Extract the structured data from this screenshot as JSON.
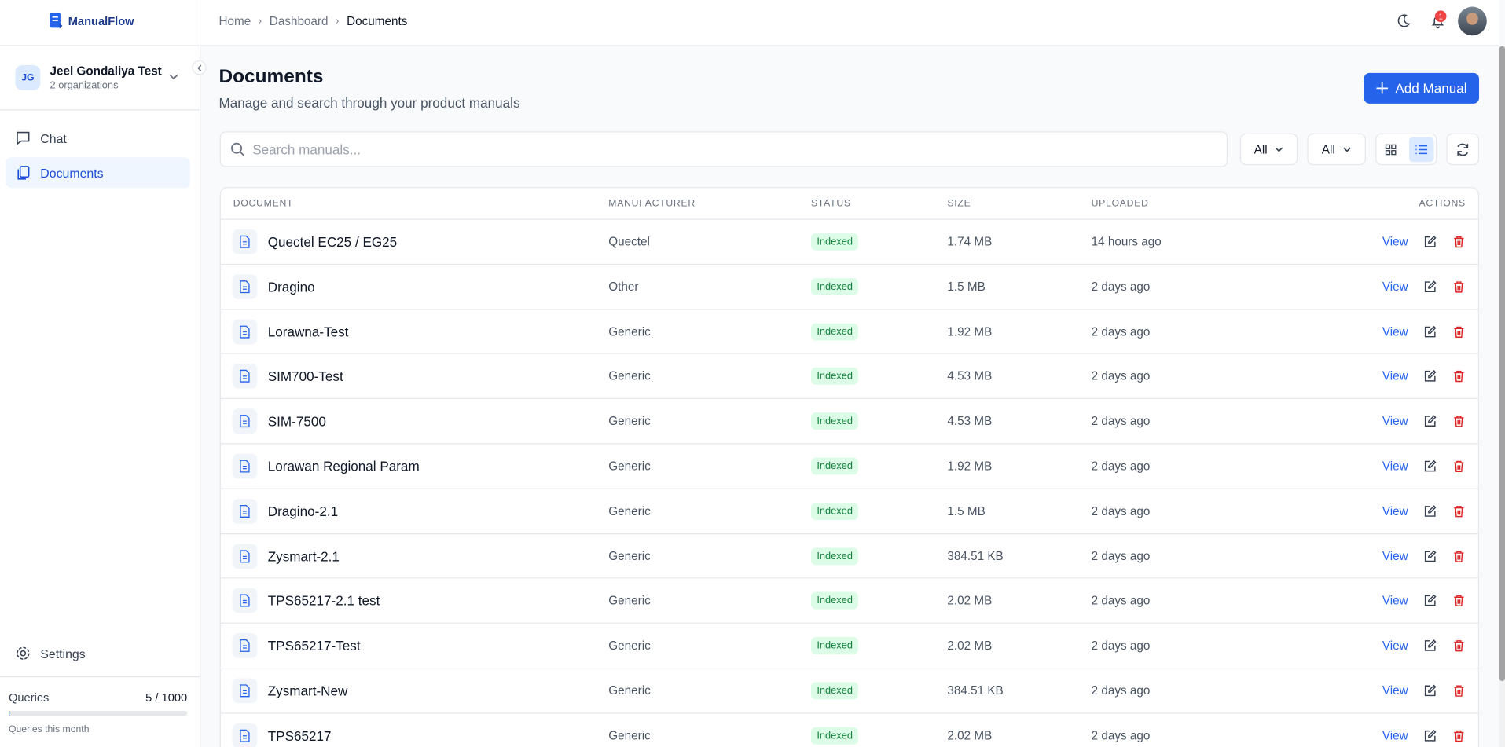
{
  "brand": "ManualFlow",
  "breadcrumb": [
    "Home",
    "Dashboard",
    "Documents"
  ],
  "notifications": "1",
  "user": {
    "initials": "JG",
    "name": "Jeel Gondaliya Test",
    "orgs": "2 organizations"
  },
  "nav": [
    "Chat",
    "Documents"
  ],
  "settings": "Settings",
  "usage": {
    "label": "Queries",
    "value": "5 / 1000",
    "note": "Queries this month"
  },
  "page": {
    "title": "Documents",
    "subtitle": "Manage and search through your product manuals",
    "add_button": "Add Manual",
    "search_placeholder": "Search manuals...",
    "filters": [
      "All",
      "All"
    ]
  },
  "table": {
    "columns": [
      "DOCUMENT",
      "MANUFACTURER",
      "STATUS",
      "SIZE",
      "UPLOADED",
      "ACTIONS"
    ],
    "action": "View",
    "rows": [
      [
        "Quectel EC25 / EG25",
        "Quectel",
        "Indexed",
        "1.74 MB",
        "14 hours ago"
      ],
      [
        "Dragino",
        "Other",
        "Indexed",
        "1.5 MB",
        "2 days ago"
      ],
      [
        "Lorawna-Test",
        "Generic",
        "Indexed",
        "1.92 MB",
        "2 days ago"
      ],
      [
        "SIM700-Test",
        "Generic",
        "Indexed",
        "4.53 MB",
        "2 days ago"
      ],
      [
        "SIM-7500",
        "Generic",
        "Indexed",
        "4.53 MB",
        "2 days ago"
      ],
      [
        "Lorawan Regional Param",
        "Generic",
        "Indexed",
        "1.92 MB",
        "2 days ago"
      ],
      [
        "Dragino-2.1",
        "Generic",
        "Indexed",
        "1.5 MB",
        "2 days ago"
      ],
      [
        "Zysmart-2.1",
        "Generic",
        "Indexed",
        "384.51 KB",
        "2 days ago"
      ],
      [
        "TPS65217-2.1 test",
        "Generic",
        "Indexed",
        "2.02 MB",
        "2 days ago"
      ],
      [
        "TPS65217-Test",
        "Generic",
        "Indexed",
        "2.02 MB",
        "2 days ago"
      ],
      [
        "Zysmart-New",
        "Generic",
        "Indexed",
        "384.51 KB",
        "2 days ago"
      ],
      [
        "TPS65217",
        "Generic",
        "Indexed",
        "2.02 MB",
        "2 days ago"
      ]
    ]
  }
}
